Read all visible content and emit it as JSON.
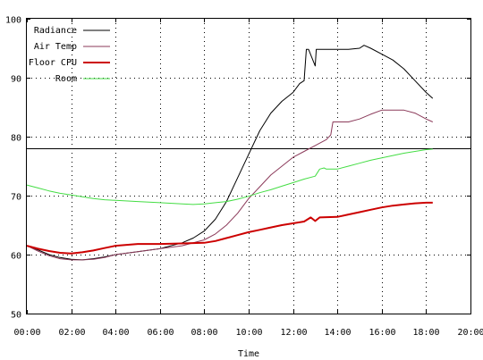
{
  "chart_data": {
    "type": "line",
    "title": "",
    "xlabel": "Time",
    "ylabel": "",
    "xlim": [
      0,
      20
    ],
    "ylim": [
      50,
      100
    ],
    "grid": true,
    "legend_placement": "top-left",
    "x_ticks": [
      "00:00",
      "02:00",
      "04:00",
      "06:00",
      "08:00",
      "10:00",
      "12:00",
      "14:00",
      "16:00",
      "18:00",
      "20:00"
    ],
    "y_ticks": [
      "50",
      "60",
      "70",
      "80",
      "90",
      "100"
    ],
    "reference_line": {
      "y": 78,
      "color": "#000000"
    },
    "series": [
      {
        "name": "Radiance",
        "color": "#000000",
        "width": 1,
        "points": [
          [
            0,
            61.5
          ],
          [
            0.5,
            60.8
          ],
          [
            1,
            60
          ],
          [
            1.5,
            59.5
          ],
          [
            2,
            59.2
          ],
          [
            2.5,
            59.1
          ],
          [
            3,
            59.3
          ],
          [
            3.5,
            59.6
          ],
          [
            4,
            60
          ],
          [
            5,
            60.5
          ],
          [
            6,
            61
          ],
          [
            7,
            62
          ],
          [
            7.5,
            62.8
          ],
          [
            8,
            64
          ],
          [
            8.5,
            66
          ],
          [
            9,
            69
          ],
          [
            9.5,
            73
          ],
          [
            10,
            77
          ],
          [
            10.5,
            81
          ],
          [
            11,
            84
          ],
          [
            11.5,
            86
          ],
          [
            12,
            87.5
          ],
          [
            12.3,
            89
          ],
          [
            12.5,
            89.5
          ],
          [
            12.6,
            94.8
          ],
          [
            12.7,
            94.8
          ],
          [
            13,
            92
          ],
          [
            13.05,
            94.8
          ],
          [
            14,
            94.8
          ],
          [
            14.5,
            94.8
          ],
          [
            15,
            95
          ],
          [
            15.2,
            95.5
          ],
          [
            15.5,
            95
          ],
          [
            16,
            94
          ],
          [
            16.5,
            93
          ],
          [
            17,
            91.5
          ],
          [
            17.5,
            89.5
          ],
          [
            18,
            87.5
          ],
          [
            18.3,
            86.5
          ]
        ]
      },
      {
        "name": "Air Temp",
        "color": "#8b3a5a",
        "width": 1,
        "points": [
          [
            0,
            61.5
          ],
          [
            0.5,
            60.6
          ],
          [
            1,
            59.8
          ],
          [
            1.5,
            59.3
          ],
          [
            2,
            59.1
          ],
          [
            2.5,
            59.1
          ],
          [
            3,
            59.2
          ],
          [
            3.5,
            59.5
          ],
          [
            4,
            60
          ],
          [
            5,
            60.5
          ],
          [
            6,
            61
          ],
          [
            7,
            61.5
          ],
          [
            8,
            62.5
          ],
          [
            8.5,
            63.5
          ],
          [
            9,
            65
          ],
          [
            9.5,
            67
          ],
          [
            10,
            69.5
          ],
          [
            10.5,
            71.5
          ],
          [
            11,
            73.5
          ],
          [
            11.5,
            75
          ],
          [
            12,
            76.5
          ],
          [
            12.5,
            77.5
          ],
          [
            13,
            78.5
          ],
          [
            13.5,
            79.5
          ],
          [
            13.7,
            80.3
          ],
          [
            13.8,
            82.5
          ],
          [
            14,
            82.5
          ],
          [
            14.5,
            82.5
          ],
          [
            15,
            83
          ],
          [
            15.5,
            83.8
          ],
          [
            16,
            84.5
          ],
          [
            17,
            84.5
          ],
          [
            17.5,
            84
          ],
          [
            18,
            83
          ],
          [
            18.3,
            82.5
          ]
        ]
      },
      {
        "name": "Floor CPU",
        "color": "#cc0000",
        "width": 2,
        "points": [
          [
            0,
            61.5
          ],
          [
            0.5,
            61
          ],
          [
            1,
            60.6
          ],
          [
            1.5,
            60.3
          ],
          [
            2,
            60.2
          ],
          [
            2.5,
            60.4
          ],
          [
            3,
            60.7
          ],
          [
            3.5,
            61.1
          ],
          [
            4,
            61.5
          ],
          [
            5,
            61.8
          ],
          [
            6,
            61.8
          ],
          [
            7,
            61.9
          ],
          [
            8,
            62
          ],
          [
            8.5,
            62.3
          ],
          [
            9,
            62.8
          ],
          [
            9.5,
            63.3
          ],
          [
            10,
            63.8
          ],
          [
            10.5,
            64.2
          ],
          [
            11,
            64.6
          ],
          [
            11.5,
            65
          ],
          [
            12,
            65.3
          ],
          [
            12.5,
            65.6
          ],
          [
            12.8,
            66.3
          ],
          [
            13,
            65.7
          ],
          [
            13.2,
            66.3
          ],
          [
            14,
            66.4
          ],
          [
            14.5,
            66.8
          ],
          [
            15,
            67.2
          ],
          [
            15.5,
            67.6
          ],
          [
            16,
            68
          ],
          [
            16.5,
            68.3
          ],
          [
            17,
            68.5
          ],
          [
            17.5,
            68.7
          ],
          [
            18,
            68.8
          ],
          [
            18.3,
            68.8
          ]
        ]
      },
      {
        "name": "Room",
        "color": "#44dd44",
        "width": 1,
        "points": [
          [
            0,
            71.8
          ],
          [
            0.5,
            71.3
          ],
          [
            1,
            70.8
          ],
          [
            1.5,
            70.4
          ],
          [
            2,
            70.1
          ],
          [
            2.5,
            69.8
          ],
          [
            3,
            69.5
          ],
          [
            3.5,
            69.3
          ],
          [
            4,
            69.2
          ],
          [
            5,
            69
          ],
          [
            6,
            68.8
          ],
          [
            7,
            68.6
          ],
          [
            7.5,
            68.5
          ],
          [
            8,
            68.6
          ],
          [
            8.5,
            68.8
          ],
          [
            9,
            69
          ],
          [
            9.5,
            69.4
          ],
          [
            10,
            69.9
          ],
          [
            10.5,
            70.5
          ],
          [
            11,
            71
          ],
          [
            11.5,
            71.6
          ],
          [
            12,
            72.2
          ],
          [
            12.5,
            72.8
          ],
          [
            13,
            73.3
          ],
          [
            13.2,
            74.5
          ],
          [
            13.4,
            74.7
          ],
          [
            13.5,
            74.5
          ],
          [
            14,
            74.5
          ],
          [
            14.5,
            75
          ],
          [
            15,
            75.5
          ],
          [
            15.5,
            76
          ],
          [
            16,
            76.4
          ],
          [
            16.5,
            76.8
          ],
          [
            17,
            77.2
          ],
          [
            17.5,
            77.5
          ],
          [
            18,
            77.8
          ],
          [
            18.3,
            77.9
          ]
        ]
      }
    ]
  }
}
